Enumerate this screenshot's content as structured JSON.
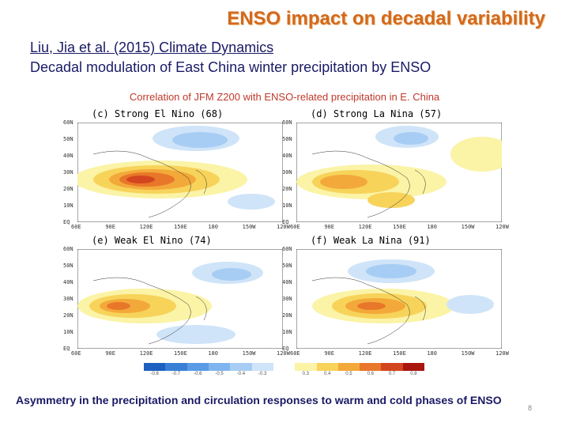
{
  "title": "ENSO impact on decadal variability",
  "reference": "Liu, Jia et al. (2015) Climate Dynamics",
  "subtitle": "Decadal modulation of East China winter precipitation by ENSO",
  "figure_caption": "Correlation of JFM Z200 with ENSO-related precipitation in E. China",
  "panels": [
    {
      "label": "(c) Strong El Nino (68)"
    },
    {
      "label": "(d) Strong La Nina (57)"
    },
    {
      "label": "(e) Weak El Nino (74)"
    },
    {
      "label": "(f) Weak La Nina (91)"
    }
  ],
  "lat_ticks": [
    "60N",
    "50N",
    "40N",
    "30N",
    "20N",
    "10N",
    "EQ"
  ],
  "lon_ticks": [
    "60E",
    "90E",
    "120E",
    "150E",
    "180",
    "150W",
    "120W"
  ],
  "colorbar": {
    "colors": [
      "#1f5fbf",
      "#3a7fd6",
      "#5b9be5",
      "#7fb5ee",
      "#a7cdf4",
      "#cfe4f8",
      "#ffffff",
      "#fbf3a6",
      "#f7d35a",
      "#f3a93a",
      "#e8772a",
      "#d3451f",
      "#a8160f"
    ],
    "labels": [
      "-0.8",
      "-0.7",
      "-0.6",
      "-0.5",
      "-0.4",
      "-0.3",
      "",
      "0.3",
      "0.4",
      "0.5",
      "0.6",
      "0.7",
      "0.8"
    ]
  },
  "footer": "Asymmetry in the precipitation and circulation responses to warm and cold phases of ENSO",
  "page_number": "8"
}
